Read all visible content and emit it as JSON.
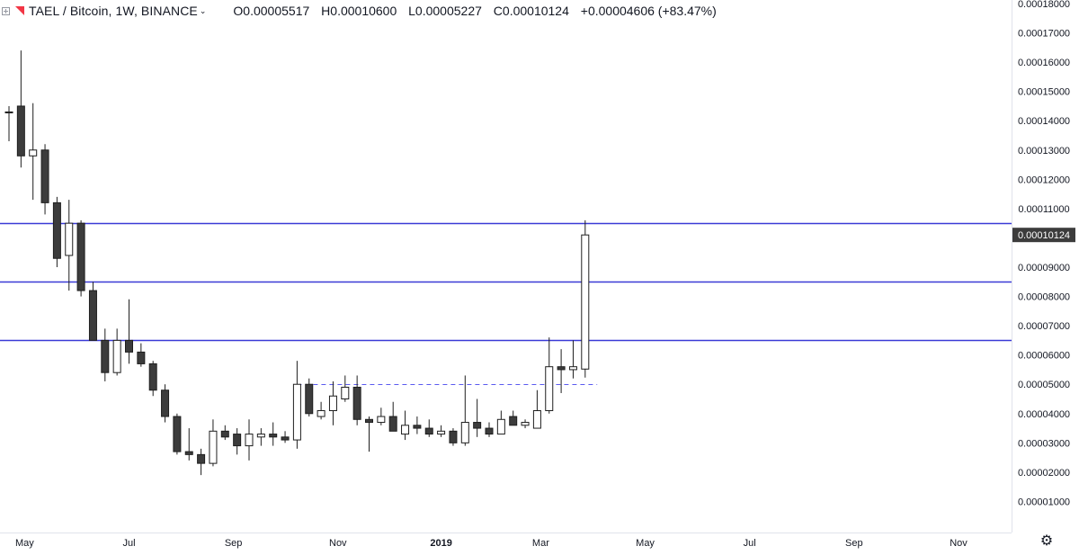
{
  "header": {
    "symbol": "TAEL / Bitcoin, 1W, BINANCE",
    "open": "O0.00005517",
    "high": "H0.00010600",
    "low": "L0.00005227",
    "close": "C0.00010124",
    "change": "+0.00004606 (+83.47%)"
  },
  "price_label": "0.00010124",
  "colors": {
    "up_fill": "#ffffff",
    "down_fill": "#3c3c3c",
    "candle_border": "#1e1e1e",
    "level_line": "#3a3ad6",
    "price_label_bg": "#3c3c3c"
  },
  "chart_data": {
    "type": "candlestick",
    "ylim": [
      0.0,
      0.00018
    ],
    "y_ticks": [
      "0.00001000",
      "0.00002000",
      "0.00003000",
      "0.00004000",
      "0.00005000",
      "0.00006000",
      "0.00007000",
      "0.00008000",
      "0.00009000",
      "0.00010000",
      "0.00011000",
      "0.00012000",
      "0.00013000",
      "0.00014000",
      "0.00015000",
      "0.00016000",
      "0.00017000",
      "0.00018000"
    ],
    "y_tick_values": [
      1e-05,
      2e-05,
      3e-05,
      4e-05,
      5e-05,
      6e-05,
      7e-05,
      8e-05,
      9e-05,
      0.0001,
      0.00011,
      0.00012,
      0.00013,
      0.00014,
      0.00015,
      0.00016,
      0.00017,
      0.00018
    ],
    "x_ticks": [
      {
        "label": "May",
        "index": 1.3,
        "bold": false
      },
      {
        "label": "Jul",
        "index": 10.0,
        "bold": false
      },
      {
        "label": "Sep",
        "index": 18.7,
        "bold": false
      },
      {
        "label": "Nov",
        "index": 27.4,
        "bold": false
      },
      {
        "label": "2019",
        "index": 36.0,
        "bold": true
      },
      {
        "label": "Mar",
        "index": 44.3,
        "bold": false
      },
      {
        "label": "May",
        "index": 53.0,
        "bold": false
      },
      {
        "label": "Jul",
        "index": 61.7,
        "bold": false
      },
      {
        "label": "Sep",
        "index": 70.4,
        "bold": false
      },
      {
        "label": "Nov",
        "index": 79.1,
        "bold": false
      }
    ],
    "horizontal_levels": [
      0.000105,
      8.5e-05,
      6.5e-05
    ],
    "dashed_level": {
      "value": 5e-05,
      "from_index": 24,
      "to_index": 49
    },
    "candles": [
      {
        "o": 0.000143,
        "h": 0.000145,
        "l": 0.000133,
        "c": 0.000143
      },
      {
        "o": 0.000145,
        "h": 0.000164,
        "l": 0.000124,
        "c": 0.000128
      },
      {
        "o": 0.000128,
        "h": 0.000146,
        "l": 0.000113,
        "c": 0.00013
      },
      {
        "o": 0.00013,
        "h": 0.000132,
        "l": 0.000108,
        "c": 0.000112
      },
      {
        "o": 0.000112,
        "h": 0.000114,
        "l": 9e-05,
        "c": 9.3e-05
      },
      {
        "o": 9.4e-05,
        "h": 0.000113,
        "l": 8.2e-05,
        "c": 0.000105
      },
      {
        "o": 0.000105,
        "h": 0.000106,
        "l": 8e-05,
        "c": 8.2e-05
      },
      {
        "o": 8.2e-05,
        "h": 8.5e-05,
        "l": 6.5e-05,
        "c": 6.5e-05
      },
      {
        "o": 6.5e-05,
        "h": 6.9e-05,
        "l": 5.1e-05,
        "c": 5.4e-05
      },
      {
        "o": 5.4e-05,
        "h": 6.9e-05,
        "l": 5.3e-05,
        "c": 6.5e-05
      },
      {
        "o": 6.5e-05,
        "h": 7.9e-05,
        "l": 5.7e-05,
        "c": 6.1e-05
      },
      {
        "o": 6.1e-05,
        "h": 6.4e-05,
        "l": 5.6e-05,
        "c": 5.7e-05
      },
      {
        "o": 5.7e-05,
        "h": 5.8e-05,
        "l": 4.6e-05,
        "c": 4.8e-05
      },
      {
        "o": 4.8e-05,
        "h": 5e-05,
        "l": 3.7e-05,
        "c": 3.9e-05
      },
      {
        "o": 3.9e-05,
        "h": 4e-05,
        "l": 2.6e-05,
        "c": 2.7e-05
      },
      {
        "o": 2.7e-05,
        "h": 3.5e-05,
        "l": 2.4e-05,
        "c": 2.6e-05
      },
      {
        "o": 2.6e-05,
        "h": 2.8e-05,
        "l": 1.9e-05,
        "c": 2.3e-05
      },
      {
        "o": 2.3e-05,
        "h": 3.8e-05,
        "l": 2.2e-05,
        "c": 3.4e-05
      },
      {
        "o": 3.4e-05,
        "h": 3.6e-05,
        "l": 3.1e-05,
        "c": 3.2e-05
      },
      {
        "o": 3.3e-05,
        "h": 3.5e-05,
        "l": 2.6e-05,
        "c": 2.9e-05
      },
      {
        "o": 2.9e-05,
        "h": 3.8e-05,
        "l": 2.4e-05,
        "c": 3.3e-05
      },
      {
        "o": 3.2e-05,
        "h": 3.5e-05,
        "l": 2.9e-05,
        "c": 3.3e-05
      },
      {
        "o": 3.3e-05,
        "h": 3.7e-05,
        "l": 2.9e-05,
        "c": 3.2e-05
      },
      {
        "o": 3.2e-05,
        "h": 3.4e-05,
        "l": 3e-05,
        "c": 3.1e-05
      },
      {
        "o": 3.1e-05,
        "h": 5.8e-05,
        "l": 2.8e-05,
        "c": 5e-05
      },
      {
        "o": 5e-05,
        "h": 5.2e-05,
        "l": 3.9e-05,
        "c": 4e-05
      },
      {
        "o": 3.9e-05,
        "h": 4.4e-05,
        "l": 3.8e-05,
        "c": 4.1e-05
      },
      {
        "o": 4.1e-05,
        "h": 5.1e-05,
        "l": 3.6e-05,
        "c": 4.6e-05
      },
      {
        "o": 4.5e-05,
        "h": 5.3e-05,
        "l": 4.4e-05,
        "c": 4.9e-05
      },
      {
        "o": 4.9e-05,
        "h": 5.3e-05,
        "l": 3.6e-05,
        "c": 3.8e-05
      },
      {
        "o": 3.8e-05,
        "h": 3.9e-05,
        "l": 2.7e-05,
        "c": 3.7e-05
      },
      {
        "o": 3.7e-05,
        "h": 4.2e-05,
        "l": 3.6e-05,
        "c": 3.9e-05
      },
      {
        "o": 3.9e-05,
        "h": 4.4e-05,
        "l": 3.4e-05,
        "c": 3.4e-05
      },
      {
        "o": 3.3e-05,
        "h": 4.1e-05,
        "l": 3.1e-05,
        "c": 3.6e-05
      },
      {
        "o": 3.6e-05,
        "h": 3.9e-05,
        "l": 3.3e-05,
        "c": 3.5e-05
      },
      {
        "o": 3.5e-05,
        "h": 3.8e-05,
        "l": 3.2e-05,
        "c": 3.3e-05
      },
      {
        "o": 3.3e-05,
        "h": 3.6e-05,
        "l": 3.2e-05,
        "c": 3.4e-05
      },
      {
        "o": 3.4e-05,
        "h": 3.5e-05,
        "l": 2.9e-05,
        "c": 3e-05
      },
      {
        "o": 3e-05,
        "h": 5.3e-05,
        "l": 2.9e-05,
        "c": 3.7e-05
      },
      {
        "o": 3.7e-05,
        "h": 4.5e-05,
        "l": 3.2e-05,
        "c": 3.5e-05
      },
      {
        "o": 3.5e-05,
        "h": 3.7e-05,
        "l": 3.2e-05,
        "c": 3.3e-05
      },
      {
        "o": 3.3e-05,
        "h": 4.1e-05,
        "l": 3.3e-05,
        "c": 3.8e-05
      },
      {
        "o": 3.9e-05,
        "h": 4.1e-05,
        "l": 3.6e-05,
        "c": 3.6e-05
      },
      {
        "o": 3.6e-05,
        "h": 3.8e-05,
        "l": 3.5e-05,
        "c": 3.7e-05
      },
      {
        "o": 3.5e-05,
        "h": 4.8e-05,
        "l": 3.5e-05,
        "c": 4.1e-05
      },
      {
        "o": 4.1e-05,
        "h": 6.6e-05,
        "l": 4e-05,
        "c": 5.6e-05
      },
      {
        "o": 5.6e-05,
        "h": 6.2e-05,
        "l": 4.7e-05,
        "c": 5.5e-05
      },
      {
        "o": 5.5e-05,
        "h": 6.5e-05,
        "l": 5.2e-05,
        "c": 5.6e-05
      },
      {
        "o": 5.52e-05,
        "h": 0.000106,
        "l": 5.23e-05,
        "c": 0.000101
      }
    ]
  }
}
